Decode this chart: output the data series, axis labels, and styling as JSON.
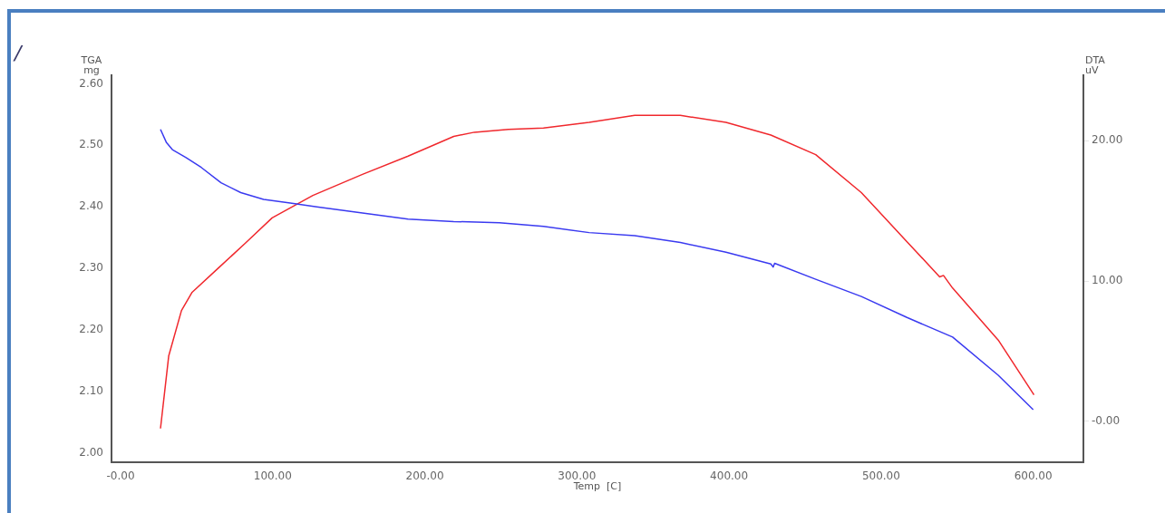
{
  "chart_data": {
    "type": "line",
    "xlabel": "Temp  [C]",
    "ylabel": "TGA\nmg",
    "y2label": "DTA\nuV",
    "annotations": [
      "/"
    ],
    "xlim": [
      -6,
      633
    ],
    "ylim": [
      1.985,
      2.614
    ],
    "y2lim": [
      -2.88,
      24.66
    ],
    "xticks": [
      {
        "value": 0,
        "label": "-0.00"
      },
      {
        "value": 100,
        "label": "100.00"
      },
      {
        "value": 200,
        "label": "200.00"
      },
      {
        "value": 300,
        "label": "300.00"
      },
      {
        "value": 400,
        "label": "400.00"
      },
      {
        "value": 500,
        "label": "500.00"
      },
      {
        "value": 600,
        "label": "600.00"
      }
    ],
    "yticks": [
      {
        "value": 2.0,
        "label": "2.00"
      },
      {
        "value": 2.1,
        "label": "2.10"
      },
      {
        "value": 2.2,
        "label": "2.20"
      },
      {
        "value": 2.3,
        "label": "2.30"
      },
      {
        "value": 2.4,
        "label": "2.40"
      },
      {
        "value": 2.5,
        "label": "2.50"
      },
      {
        "value": 2.6,
        "label": "2.60"
      }
    ],
    "y2ticks": [
      {
        "value": 0,
        "label": "-0.00"
      },
      {
        "value": 10,
        "label": "10.00"
      },
      {
        "value": 20,
        "label": "20.00"
      }
    ],
    "grid": false,
    "legend": false,
    "marker": "none",
    "line_style": "solid",
    "series": [
      {
        "color": "#3a3af0",
        "axis": "y",
        "x": [
          26.2,
          30,
          34,
          43,
          53,
          66,
          79,
          94,
          111.5,
          129,
          159,
          189,
          219,
          249,
          278,
          308,
          338,
          368,
          398,
          427.5,
          429,
          430,
          457,
          487,
          517,
          547,
          577,
          600
        ],
        "values": [
          2.526,
          2.505,
          2.493,
          2.48,
          2.464,
          2.439,
          2.423,
          2.412,
          2.406,
          2.4,
          2.39,
          2.38,
          2.376,
          2.374,
          2.368,
          2.358,
          2.353,
          2.342,
          2.326,
          2.307,
          2.302,
          2.308,
          2.282,
          2.254,
          2.22,
          2.188,
          2.126,
          2.07
        ]
      },
      {
        "color": "#f0282d",
        "axis": "y2",
        "x": [
          26.2,
          31.6,
          40,
          47,
          64,
          82,
          99.6,
          126.4,
          159,
          189,
          219,
          232.6,
          255,
          278,
          308,
          338,
          368,
          398,
          427.5,
          457,
          487,
          517,
          538.5,
          541,
          547,
          577,
          600.5
        ],
        "values": [
          -0.5,
          4.66,
          7.9,
          9.2,
          10.9,
          12.7,
          14.5,
          16.1,
          17.6,
          18.9,
          20.3,
          20.6,
          20.8,
          20.9,
          21.3,
          21.8,
          21.8,
          21.3,
          20.4,
          19.0,
          16.3,
          12.8,
          10.3,
          10.4,
          9.5,
          5.8,
          1.9
        ]
      }
    ]
  }
}
